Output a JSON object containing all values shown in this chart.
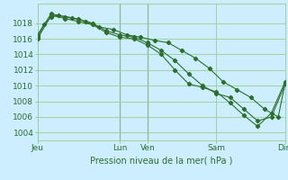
{
  "bg_color": "#cceeff",
  "grid_color": "#99cc99",
  "line_color": "#2d6e2d",
  "xlabel": "Pression niveau de la mer( hPa )",
  "ylim": [
    1003.0,
    1020.5
  ],
  "yticks": [
    1004,
    1006,
    1008,
    1010,
    1012,
    1014,
    1016,
    1018
  ],
  "xtick_labels": [
    "Jeu",
    "Lun",
    "Ven",
    "Sam",
    "Dim"
  ],
  "xtick_positions": [
    0,
    6,
    8,
    13,
    18
  ],
  "vline_positions": [
    6,
    8
  ],
  "line1_x": [
    0,
    0.5,
    1.0,
    1.5,
    2.5,
    3.5,
    4.5,
    5.5,
    6.5,
    7.5,
    8.5,
    9.5,
    10.5,
    11.5,
    12.5,
    13.5,
    14.5,
    15.5,
    16.5,
    17.5,
    18
  ],
  "line1_y": [
    1016.2,
    1017.8,
    1018.8,
    1019.0,
    1018.7,
    1018.2,
    1017.5,
    1017.2,
    1016.5,
    1016.2,
    1015.8,
    1015.5,
    1014.5,
    1013.5,
    1012.2,
    1010.5,
    1009.5,
    1008.5,
    1007.0,
    1006.0,
    1010.3
  ],
  "line2_x": [
    0,
    1,
    2,
    3,
    4,
    5,
    6,
    7,
    8,
    9,
    10,
    11,
    12,
    13,
    14,
    15,
    16,
    17,
    18
  ],
  "line2_y": [
    1016.5,
    1019.2,
    1018.8,
    1018.5,
    1018.0,
    1017.0,
    1016.5,
    1016.2,
    1015.5,
    1014.5,
    1013.2,
    1011.5,
    1010.0,
    1009.0,
    1008.5,
    1007.0,
    1005.5,
    1006.0,
    1010.2
  ],
  "line3_x": [
    0,
    1,
    2,
    3,
    4,
    5,
    6,
    7,
    8,
    9,
    10,
    11,
    12,
    13,
    14,
    15,
    16,
    17,
    18
  ],
  "line3_y": [
    1016.0,
    1019.0,
    1018.6,
    1018.2,
    1017.8,
    1016.8,
    1016.2,
    1016.0,
    1015.2,
    1014.0,
    1012.0,
    1010.2,
    1009.8,
    1009.2,
    1007.8,
    1006.2,
    1004.8,
    1006.5,
    1010.5
  ],
  "tick_fontsize": 6.5,
  "xlabel_fontsize": 7
}
